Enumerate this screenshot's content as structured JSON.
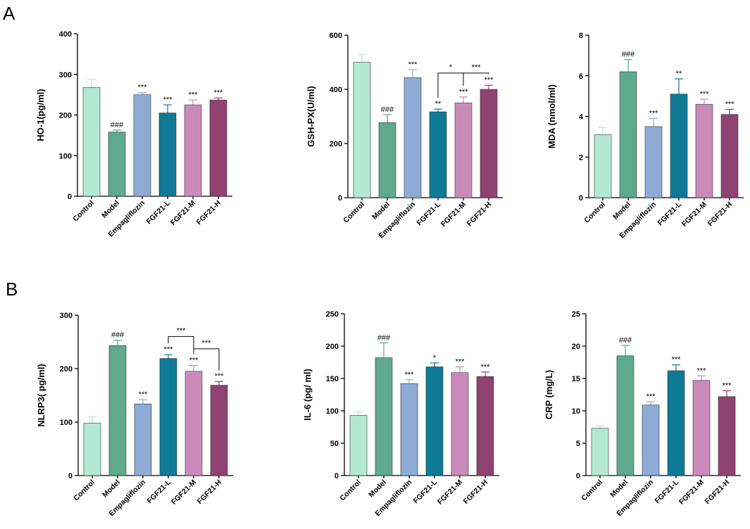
{
  "panels": [
    {
      "letter": "A"
    },
    {
      "letter": "B"
    }
  ],
  "bar_colors": [
    "#b3e8d5",
    "#5fa98e",
    "#8eabd6",
    "#0e7a96",
    "#c98ab9",
    "#8f4373"
  ],
  "chart_data": [
    {
      "type": "bar",
      "ylabel": "HO-1(pg/ml)",
      "categories": [
        "Control",
        "Model",
        "Empagliflozin",
        "FGF21-L",
        "FGF21-M",
        "FGF21-H"
      ],
      "values": [
        268,
        158,
        250,
        205,
        225,
        237
      ],
      "errors": [
        20,
        5,
        5,
        20,
        12,
        5
      ],
      "ylim": [
        0,
        400
      ],
      "yticks": [
        "0",
        "100",
        "200",
        "300",
        "400"
      ],
      "annotations": [
        "",
        "###",
        "***",
        "***",
        "***",
        "***"
      ],
      "brackets": []
    },
    {
      "type": "bar",
      "ylabel": "GSH-PX(U/ml)",
      "categories": [
        "Control",
        "Model",
        "Empagliflozin",
        "FGF21-L",
        "FGF21-M",
        "FGF21-H"
      ],
      "values": [
        500,
        277,
        443,
        317,
        350,
        400
      ],
      "errors": [
        28,
        30,
        30,
        10,
        22,
        15
      ],
      "ylim": [
        0,
        600
      ],
      "yticks": [
        "0",
        "200",
        "400",
        "600"
      ],
      "annotations": [
        "",
        "###",
        "***",
        "**",
        "***",
        "***"
      ],
      "brackets": [
        {
          "from": 3,
          "to": 4,
          "y": 460,
          "label": "*"
        },
        {
          "from": 4,
          "to": 5,
          "y": 460,
          "label": "***"
        }
      ]
    },
    {
      "type": "bar",
      "ylabel": "MDA (nmol/ml)",
      "categories": [
        "Control",
        "Model",
        "Empagliflozin",
        "FGF21-L",
        "FGF21-M",
        "FGF21-H"
      ],
      "values": [
        3.1,
        6.2,
        3.5,
        5.1,
        4.6,
        4.1
      ],
      "errors": [
        0.35,
        0.6,
        0.4,
        0.75,
        0.25,
        0.25
      ],
      "ylim": [
        0,
        8
      ],
      "yticks": [
        "0",
        "2",
        "4",
        "6",
        "8"
      ],
      "annotations": [
        "",
        "###",
        "***",
        "**",
        "***",
        "***"
      ],
      "brackets": []
    },
    {
      "type": "bar",
      "ylabel": "NLRP3( pg/ml)",
      "categories": [
        "Control",
        "Model",
        "Empagliflozin",
        "FGF21-L",
        "FGF21-M",
        "FGF21-H"
      ],
      "values": [
        98,
        243,
        134,
        219,
        195,
        169
      ],
      "errors": [
        12,
        10,
        8,
        7,
        11,
        7
      ],
      "ylim": [
        0,
        300
      ],
      "yticks": [
        "0",
        "100",
        "200",
        "300"
      ],
      "annotations": [
        "",
        "###",
        "***",
        "***",
        "***",
        "***"
      ],
      "brackets": [
        {
          "from": 3,
          "to": 4,
          "y": 260,
          "label": "***"
        },
        {
          "from": 4,
          "to": 5,
          "y": 237,
          "label": "***"
        }
      ]
    },
    {
      "type": "bar",
      "ylabel": "IL-6 (pg/ ml)",
      "categories": [
        "Control",
        "Model",
        "Empagliflozin",
        "FGF21-L",
        "FGF21-M",
        "FGF21-H"
      ],
      "values": [
        93,
        182,
        142,
        168,
        159,
        153
      ],
      "errors": [
        5,
        23,
        6,
        6,
        9,
        7
      ],
      "ylim": [
        0,
        250
      ],
      "yticks": [
        "0",
        "50",
        "100",
        "150",
        "200",
        "250"
      ],
      "annotations": [
        "",
        "###",
        "***",
        "*",
        "***",
        "***"
      ],
      "brackets": []
    },
    {
      "type": "bar",
      "ylabel": "CRP (mg/L)",
      "categories": [
        "Control",
        "Model",
        "Empagliflozin",
        "FGF21-L",
        "FGF21-M",
        "FGF21-H"
      ],
      "values": [
        7.3,
        18.5,
        10.9,
        16.2,
        14.7,
        12.2
      ],
      "errors": [
        0.4,
        1.6,
        0.5,
        0.9,
        0.7,
        0.9
      ],
      "ylim": [
        0,
        25
      ],
      "yticks": [
        "0",
        "5",
        "10",
        "15",
        "20",
        "25"
      ],
      "annotations": [
        "",
        "###",
        "***",
        "***",
        "***",
        "***"
      ],
      "brackets": []
    }
  ]
}
